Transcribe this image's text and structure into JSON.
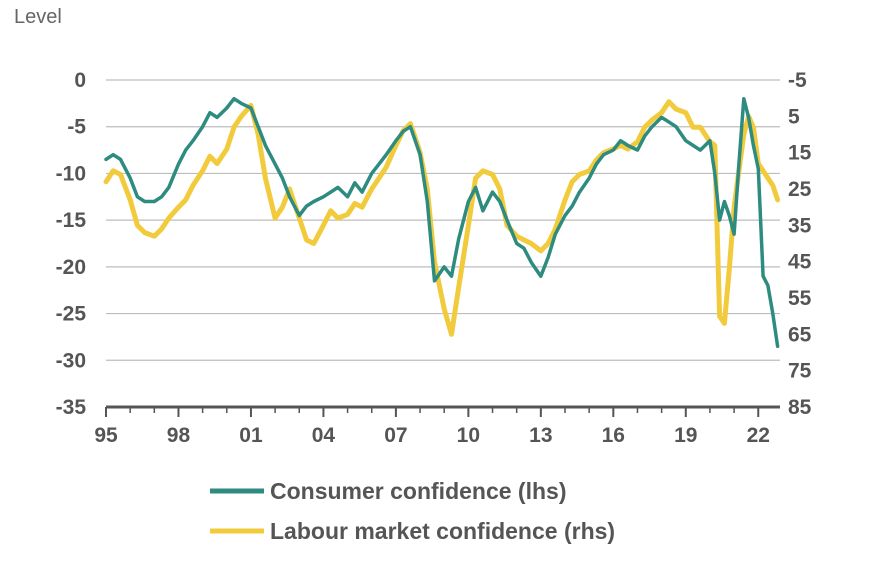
{
  "chart_data": {
    "type": "line",
    "title": "",
    "unit_label": "Level",
    "x_ticks": [
      "95",
      "98",
      "01",
      "04",
      "07",
      "10",
      "13",
      "16",
      "19",
      "22"
    ],
    "xlim": [
      1995,
      2022.9
    ],
    "left_axis": {
      "ylim": [
        -35,
        0
      ],
      "ticks": [
        "0",
        "-5",
        "-10",
        "-15",
        "-20",
        "-25",
        "-30",
        "-35"
      ]
    },
    "right_axis": {
      "ylim": [
        85,
        -5
      ],
      "ticks": [
        "-5",
        "5",
        "15",
        "25",
        "35",
        "45",
        "55",
        "65",
        "75",
        "85"
      ]
    },
    "grid": true,
    "legend_position": "bottom",
    "colors": {
      "consumer": "#2e8b80",
      "labour": "#f2cb3c",
      "grid": "#bdbdbd",
      "axis": "#555555"
    },
    "series": [
      {
        "name": "Consumer confidence (lhs)",
        "axis": "left",
        "x": [
          1995.0,
          1995.3,
          1995.6,
          1996.0,
          1996.3,
          1996.6,
          1997.0,
          1997.3,
          1997.6,
          1998.0,
          1998.3,
          1998.6,
          1999.0,
          1999.3,
          1999.6,
          2000.0,
          2000.3,
          2000.6,
          2001.0,
          2001.3,
          2001.6,
          2002.0,
          2002.3,
          2002.6,
          2003.0,
          2003.3,
          2003.6,
          2004.0,
          2004.3,
          2004.6,
          2005.0,
          2005.3,
          2005.6,
          2006.0,
          2006.3,
          2006.6,
          2007.0,
          2007.3,
          2007.6,
          2008.0,
          2008.3,
          2008.6,
          2009.0,
          2009.3,
          2009.6,
          2010.0,
          2010.3,
          2010.6,
          2011.0,
          2011.3,
          2011.6,
          2012.0,
          2012.3,
          2012.6,
          2013.0,
          2013.3,
          2013.6,
          2014.0,
          2014.3,
          2014.6,
          2015.0,
          2015.3,
          2015.6,
          2016.0,
          2016.3,
          2016.6,
          2017.0,
          2017.3,
          2017.6,
          2018.0,
          2018.3,
          2018.6,
          2019.0,
          2019.3,
          2019.6,
          2020.0,
          2020.2,
          2020.4,
          2020.6,
          2020.8,
          2021.0,
          2021.2,
          2021.4,
          2021.6,
          2021.8,
          2022.0,
          2022.2,
          2022.4,
          2022.6,
          2022.8
        ],
        "values": [
          -8.5,
          -8.0,
          -8.5,
          -10.5,
          -12.5,
          -13.0,
          -13.0,
          -12.5,
          -11.5,
          -9.0,
          -7.5,
          -6.5,
          -5.0,
          -3.5,
          -4.0,
          -3.0,
          -2.0,
          -2.5,
          -3.0,
          -5.0,
          -7.0,
          -9.0,
          -10.5,
          -12.5,
          -14.5,
          -13.5,
          -13.0,
          -12.5,
          -12.0,
          -11.5,
          -12.5,
          -11.0,
          -12.0,
          -10.0,
          -9.0,
          -8.0,
          -6.5,
          -5.5,
          -5.0,
          -8.0,
          -13.0,
          -21.5,
          -20.0,
          -21.0,
          -17.0,
          -13.0,
          -11.5,
          -14.0,
          -12.0,
          -13.0,
          -15.0,
          -17.5,
          -18.0,
          -19.5,
          -21.0,
          -19.0,
          -16.5,
          -14.5,
          -13.5,
          -12.0,
          -10.5,
          -9.0,
          -8.0,
          -7.5,
          -6.5,
          -7.0,
          -7.5,
          -6.0,
          -5.0,
          -4.0,
          -4.5,
          -5.0,
          -6.5,
          -7.0,
          -7.5,
          -6.5,
          -10.0,
          -15.0,
          -13.0,
          -14.5,
          -16.5,
          -9.0,
          -2.0,
          -4.0,
          -7.0,
          -9.5,
          -21.0,
          -22.0,
          -25.0,
          -28.5
        ]
      },
      {
        "name": "Labour market confidence (rhs)",
        "axis": "right",
        "x": [
          1995.0,
          1995.3,
          1995.6,
          1996.0,
          1996.3,
          1996.6,
          1997.0,
          1997.3,
          1997.6,
          1998.0,
          1998.3,
          1998.6,
          1999.0,
          1999.3,
          1999.6,
          2000.0,
          2000.3,
          2000.6,
          2001.0,
          2001.3,
          2001.6,
          2002.0,
          2002.3,
          2002.6,
          2003.0,
          2003.3,
          2003.6,
          2004.0,
          2004.3,
          2004.6,
          2005.0,
          2005.3,
          2005.6,
          2006.0,
          2006.3,
          2006.6,
          2007.0,
          2007.3,
          2007.6,
          2008.0,
          2008.3,
          2008.6,
          2009.0,
          2009.3,
          2009.6,
          2010.0,
          2010.3,
          2010.6,
          2011.0,
          2011.3,
          2011.6,
          2012.0,
          2012.3,
          2012.6,
          2013.0,
          2013.3,
          2013.6,
          2014.0,
          2014.3,
          2014.6,
          2015.0,
          2015.3,
          2015.6,
          2016.0,
          2016.3,
          2016.6,
          2017.0,
          2017.3,
          2017.6,
          2018.0,
          2018.3,
          2018.6,
          2019.0,
          2019.3,
          2019.6,
          2020.0,
          2020.2,
          2020.4,
          2020.6,
          2020.8,
          2021.0,
          2021.2,
          2021.4,
          2021.6,
          2021.8,
          2022.0,
          2022.2,
          2022.4,
          2022.6,
          2022.8
        ],
        "values": [
          23,
          20,
          21,
          28,
          35,
          37,
          38,
          36,
          33,
          30,
          28,
          24,
          20,
          16,
          18,
          14,
          8,
          5,
          2,
          10,
          22,
          33,
          30,
          25,
          33,
          39,
          40,
          35,
          31,
          33,
          32,
          29,
          30,
          25,
          22,
          19,
          13,
          9,
          7,
          15,
          25,
          45,
          58,
          65,
          52,
          35,
          22,
          20,
          21,
          25,
          35,
          38,
          39,
          40,
          42,
          40,
          36,
          28,
          23,
          21,
          20,
          17,
          15,
          14,
          13,
          14,
          12,
          8,
          6,
          4,
          1,
          3,
          4,
          8,
          8,
          12,
          13,
          60,
          62,
          47,
          30,
          20,
          10,
          5,
          8,
          18,
          20,
          22,
          24,
          28
        ]
      }
    ]
  }
}
